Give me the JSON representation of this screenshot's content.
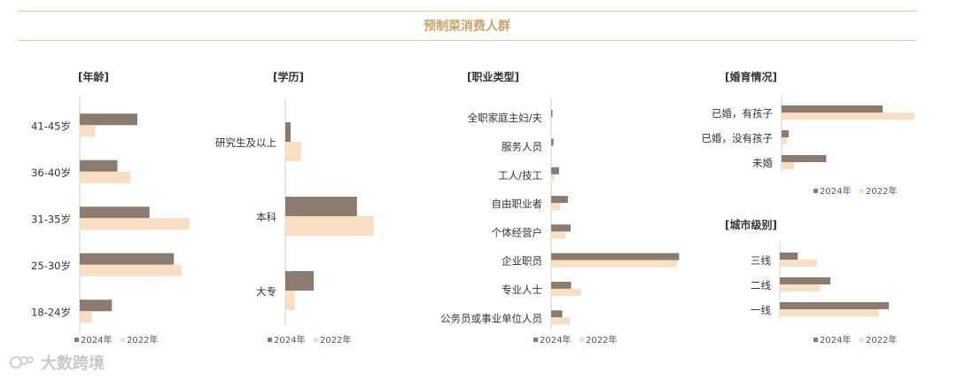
{
  "header": {
    "title": "预制菜消费人群"
  },
  "colors": {
    "y2024": "#8c7b6f",
    "y2022": "#f8dfc2",
    "axis": "#d0d0d0"
  },
  "watermark": {
    "text": "大数跨境",
    "icon": "brand-logo-icon"
  },
  "chart_data": [
    {
      "type": "bar",
      "orientation": "horizontal",
      "title": "[年龄]",
      "categories": [
        "41-45岁",
        "36-40岁",
        "31-35岁",
        "25-30岁",
        "18-24岁"
      ],
      "series": [
        {
          "name": "2024年",
          "values": [
            5.2,
            3.4,
            6.3,
            8.5,
            2.9
          ]
        },
        {
          "name": "2022年",
          "values": [
            1.4,
            4.6,
            9.9,
            9.2,
            1.1
          ]
        }
      ]
    },
    {
      "type": "bar",
      "orientation": "horizontal",
      "title": "[学历]",
      "categories": [
        "研究生及以上",
        "本科",
        "大专"
      ],
      "series": [
        {
          "name": "2024年",
          "values": [
            2.5,
            34.0,
            13.5
          ]
        },
        {
          "name": "2022年",
          "values": [
            7.5,
            42.0,
            4.5
          ]
        }
      ]
    },
    {
      "type": "bar",
      "orientation": "horizontal",
      "title": "[职业类型]",
      "categories": [
        "全职家庭主妇/夫",
        "服务人员",
        "工人/技工",
        "自由职业者",
        "个体经营户",
        "企业职员",
        "专业人士",
        "公务员或事业单位人员"
      ],
      "series": [
        {
          "name": "2024年",
          "values": [
            0.2,
            0.5,
            1.7,
            3.6,
            4.2,
            27.5,
            4.3,
            2.4
          ]
        },
        {
          "name": "2022年",
          "values": [
            0.1,
            0.2,
            0.7,
            2.0,
            3.1,
            27.0,
            6.4,
            4.0
          ]
        }
      ]
    },
    {
      "type": "bar",
      "orientation": "horizontal",
      "title": "[婚育情况]",
      "categories": [
        "已婚，有孩子",
        "已婚，没有孩子",
        "未婚"
      ],
      "series": [
        {
          "name": "2024年",
          "values": [
            70.0,
            5.0,
            31.0
          ]
        },
        {
          "name": "2022年",
          "values": [
            92.0,
            4.0,
            9.0
          ]
        }
      ]
    },
    {
      "type": "bar",
      "orientation": "horizontal",
      "title": "[城市级别]",
      "categories": [
        "三线",
        "二线",
        "一线"
      ],
      "series": [
        {
          "name": "2024年",
          "values": [
            16.0,
            45.0,
            97.0
          ]
        },
        {
          "name": "2022年",
          "values": [
            33.0,
            36.0,
            88.0
          ]
        }
      ]
    }
  ]
}
